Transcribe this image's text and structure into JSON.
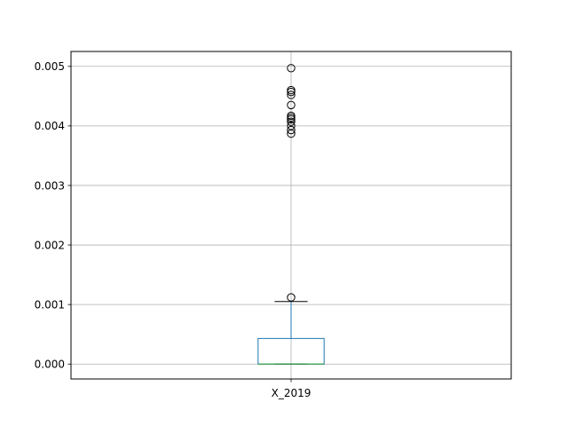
{
  "chart_data": {
    "type": "box",
    "categories": [
      "X_2019"
    ],
    "y_ticks": [
      "0.000",
      "0.001",
      "0.002",
      "0.003",
      "0.004",
      "0.005"
    ],
    "y_tick_values": [
      0.0,
      0.001,
      0.002,
      0.003,
      0.004,
      0.005
    ],
    "ylim": [
      -0.00025,
      0.00525
    ],
    "grid": true,
    "boxes": [
      {
        "name": "X_2019",
        "q1": 0.0,
        "median": 0.0,
        "q3": 0.00043,
        "whisker_low": 0.0,
        "whisker_high": 0.00105,
        "outliers": [
          0.00112,
          0.00387,
          0.00393,
          0.004,
          0.00407,
          0.00411,
          0.00414,
          0.00417,
          0.00435,
          0.00452,
          0.00457,
          0.0046,
          0.00497
        ]
      }
    ],
    "colors": {
      "box": "#1f77b4",
      "median": "#2ca02c",
      "whisker_cap": "#000000",
      "outlier": "#000000",
      "grid": "#b0b0b0"
    }
  }
}
